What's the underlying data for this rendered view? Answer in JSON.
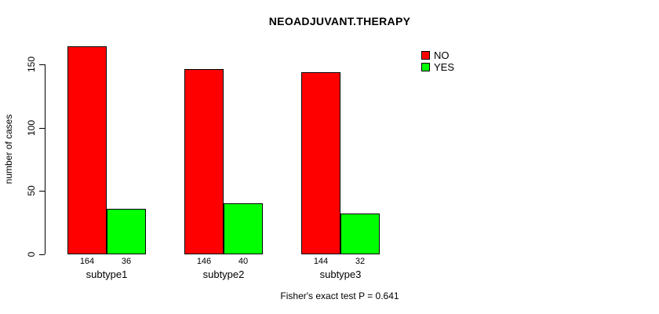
{
  "chart_data": {
    "type": "bar",
    "title": "NEOADJUVANT.THERAPY",
    "categories": [
      "subtype1",
      "subtype2",
      "subtype3"
    ],
    "series": [
      {
        "name": "NO",
        "color": "#FF0000",
        "values": [
          164,
          146,
          144
        ]
      },
      {
        "name": "YES",
        "color": "#00FF00",
        "values": [
          36,
          40,
          32
        ]
      }
    ],
    "xlabel": "",
    "ylabel": "number of cases",
    "yticks": [
      "0",
      "50",
      "100",
      "150"
    ],
    "ylim": [
      0,
      164
    ],
    "grid": false,
    "legend_position": "top-right",
    "annotation": "Fisher's exact test P = 0.641"
  }
}
